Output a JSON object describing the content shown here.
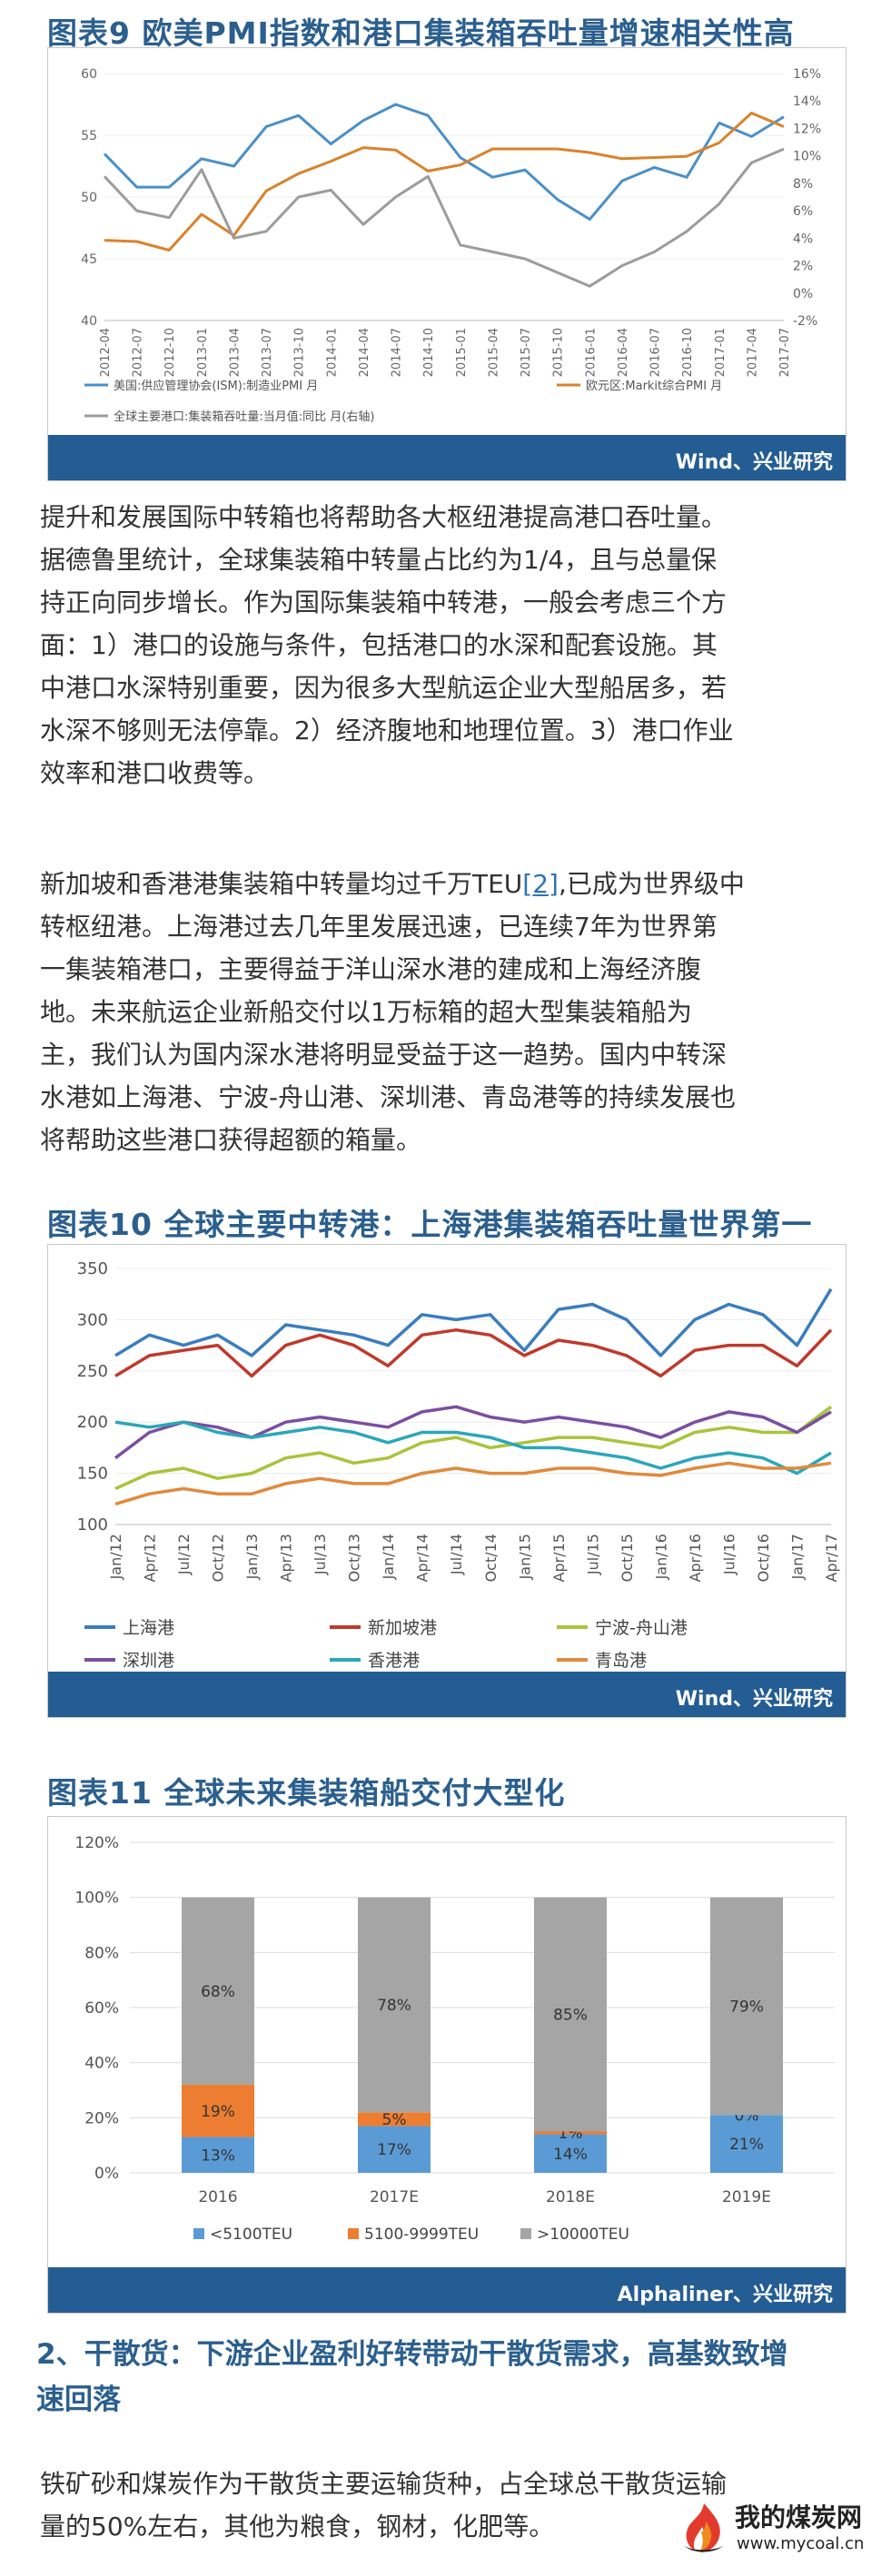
{
  "figure9": {
    "title": "图表9 欧美PMI指数和港口集装箱吞吐量增速相关性高",
    "source": "Wind、兴业研究",
    "chart_data": {
      "type": "line",
      "categories": [
        "2012-04",
        "2012-07",
        "2012-10",
        "2013-01",
        "2013-04",
        "2013-07",
        "2013-10",
        "2014-01",
        "2014-04",
        "2014-07",
        "2014-10",
        "2015-01",
        "2015-04",
        "2015-07",
        "2015-10",
        "2016-01",
        "2016-04",
        "2016-07",
        "2016-10",
        "2017-01",
        "2017-04",
        "2017-07"
      ],
      "y_left_ticks": [
        "60",
        "55",
        "50",
        "45",
        "40"
      ],
      "y_right_ticks": [
        "16%",
        "14%",
        "12%",
        "10%",
        "8%",
        "6%",
        "4%",
        "2%",
        "0%",
        "-2%"
      ],
      "ylim": [
        40,
        60
      ],
      "y2lim": [
        -2,
        16
      ],
      "series": [
        {
          "name": "美国:供应管理协会(ISM):制造业PMI 月",
          "color": "#4a90c8",
          "axis": "left",
          "values": [
            53.5,
            50.8,
            50.8,
            53.1,
            52.5,
            55.7,
            56.6,
            54.3,
            56.2,
            57.5,
            56.6,
            53.2,
            51.6,
            52.2,
            49.8,
            48.2,
            51.3,
            52.4,
            51.6,
            56.0,
            54.9,
            56.5
          ]
        },
        {
          "name": "欧元区:Markit综合PMI 月",
          "color": "#d9822b",
          "axis": "left",
          "values": [
            46.5,
            46.4,
            45.7,
            48.6,
            46.9,
            50.5,
            51.9,
            52.9,
            54.0,
            53.8,
            52.1,
            52.6,
            53.9,
            53.9,
            53.9,
            53.6,
            53.1,
            53.2,
            53.3,
            54.4,
            56.8,
            55.7
          ]
        },
        {
          "name": "全球主要港口:集装箱吞吐量:当月值:同比 月(右轴)",
          "color": "#9c9c9c",
          "axis": "right",
          "values": [
            8.5,
            6.0,
            5.5,
            9.0,
            4.0,
            4.5,
            7.0,
            7.5,
            5.0,
            7.0,
            8.5,
            3.5,
            3.0,
            2.5,
            1.5,
            0.5,
            2.0,
            3.0,
            4.5,
            6.5,
            9.5,
            10.5
          ]
        }
      ],
      "legend_placement": "bottom"
    }
  },
  "para1": {
    "lines": [
      "提升和发展国际中转箱也将帮助各大枢纽港提高港口吞吐量。",
      "据德鲁里统计，全球集装箱中转量占比约为1/4，且与总量保",
      "持正向同步增长。作为国际集装箱中转港，一般会考虑三个方",
      "面：1）港口的设施与条件，包括港口的水深和配套设施。其",
      "中港口水深特别重要，因为很多大型航运企业大型船居多，若",
      "水深不够则无法停靠。2）经济腹地和地理位置。3）港口作业",
      "效率和港口收费等。"
    ]
  },
  "para2": {
    "line1_before": "新加坡和香港港集装箱中转量均过千万TEU",
    "citation": "[2]",
    "line1_after": ",已成为世界级中",
    "lines": [
      "转枢纽港。上海港过去几年里发展迅速，已连续7年为世界第",
      "一集装箱港口，主要得益于洋山深水港的建成和上海经济腹",
      "地。未来航运企业新船交付以1万标箱的超大型集装箱船为",
      "主，我们认为国内深水港将明显受益于这一趋势。国内中转深",
      "水港如上海港、宁波-舟山港、深圳港、青岛港等的持续发展也",
      "将帮助这些港口获得超额的箱量。"
    ]
  },
  "figure10": {
    "title": "图表10 全球主要中转港：上海港集装箱吞吐量世界第一",
    "source": "Wind、兴业研究",
    "chart_data": {
      "type": "line",
      "categories": [
        "Jan/12",
        "Apr/12",
        "Jul/12",
        "Oct/12",
        "Jan/13",
        "Apr/13",
        "Jul/13",
        "Oct/13",
        "Jan/14",
        "Apr/14",
        "Jul/14",
        "Oct/14",
        "Jan/15",
        "Apr/15",
        "Jul/15",
        "Oct/15",
        "Jan/16",
        "Apr/16",
        "Jul/16",
        "Oct/16",
        "Jan/17",
        "Apr/17"
      ],
      "y_ticks": [
        "350",
        "300",
        "250",
        "200",
        "150",
        "100"
      ],
      "ylim": [
        100,
        350
      ],
      "series": [
        {
          "name": "上海港",
          "color": "#3a7dbf",
          "values": [
            265,
            285,
            275,
            285,
            265,
            295,
            290,
            285,
            275,
            305,
            300,
            305,
            270,
            310,
            315,
            300,
            265,
            300,
            315,
            305,
            275,
            330
          ]
        },
        {
          "name": "新加坡港",
          "color": "#c0392b",
          "values": [
            245,
            265,
            270,
            275,
            245,
            275,
            285,
            275,
            255,
            285,
            290,
            285,
            265,
            280,
            275,
            265,
            245,
            270,
            275,
            275,
            255,
            290
          ]
        },
        {
          "name": "宁波-舟山港",
          "color": "#a8c43a",
          "values": [
            135,
            150,
            155,
            145,
            150,
            165,
            170,
            160,
            165,
            180,
            185,
            175,
            180,
            185,
            185,
            180,
            175,
            190,
            195,
            190,
            190,
            215
          ]
        },
        {
          "name": "深圳港",
          "color": "#7a4fa0",
          "values": [
            165,
            190,
            200,
            195,
            185,
            200,
            205,
            200,
            195,
            210,
            215,
            205,
            200,
            205,
            200,
            195,
            185,
            200,
            210,
            205,
            190,
            210
          ]
        },
        {
          "name": "香港港",
          "color": "#2aa7b8",
          "values": [
            200,
            195,
            200,
            190,
            185,
            190,
            195,
            190,
            180,
            190,
            190,
            185,
            175,
            175,
            170,
            165,
            155,
            165,
            170,
            165,
            150,
            170
          ]
        },
        {
          "name": "青岛港",
          "color": "#e08a3c",
          "values": [
            120,
            130,
            135,
            130,
            130,
            140,
            145,
            140,
            140,
            150,
            155,
            150,
            150,
            155,
            155,
            150,
            148,
            155,
            160,
            155,
            155,
            160
          ]
        }
      ],
      "legend_placement": "bottom"
    }
  },
  "figure11": {
    "title": "图表11 全球未来集装箱船交付大型化",
    "source": "Alphaliner、兴业研究",
    "chart_data": {
      "type": "bar",
      "stacked": true,
      "categories": [
        "2016",
        "2017E",
        "2018E",
        "2019E"
      ],
      "y_ticks": [
        "120%",
        "100%",
        "80%",
        "60%",
        "40%",
        "20%",
        "0%"
      ],
      "ylim": [
        0,
        120
      ],
      "series": [
        {
          "name": "<5100TEU",
          "color": "#5b9bd5",
          "values": [
            13,
            17,
            14,
            21
          ],
          "labels": [
            "13%",
            "17%",
            "14%",
            "21%"
          ]
        },
        {
          "name": "5100-9999TEU",
          "color": "#ed7d31",
          "values": [
            19,
            5,
            1,
            0
          ],
          "labels": [
            "19%",
            "5%",
            "1%",
            "0%"
          ]
        },
        {
          "name": ">10000TEU",
          "color": "#a5a5a5",
          "values": [
            68,
            78,
            85,
            79
          ],
          "labels": [
            "68%",
            "78%",
            "85%",
            "79%"
          ]
        }
      ],
      "legend_placement": "bottom"
    }
  },
  "section2": {
    "heading_lines": [
      "2、干散货：下游企业盈利好转带动干散货需求，高基数致增",
      "速回落"
    ]
  },
  "para3": {
    "lines": [
      "铁矿砂和煤炭作为干散货主要运输货种，占全球总干散货运输",
      "量的50%左右，其他为粮食，钢材，化肥等。"
    ]
  },
  "watermark": {
    "name": "我的煤炭网",
    "url": "www.mycoal.cn",
    "flame_colors": [
      "#e23b2e",
      "#f08c1e",
      "#222222"
    ]
  }
}
